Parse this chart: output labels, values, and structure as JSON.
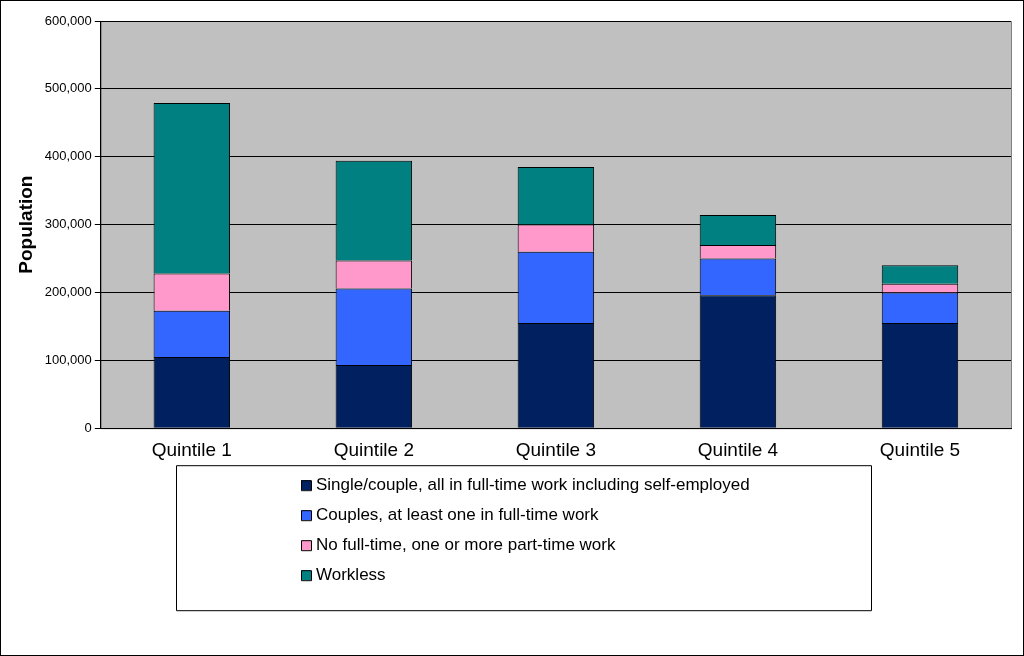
{
  "chart_data": {
    "type": "bar",
    "stacked": true,
    "ylabel": "Population",
    "categories": [
      "Quintile 1",
      "Quintile 2",
      "Quintile 3",
      "Quintile 4",
      "Quintile 5"
    ],
    "series": [
      {
        "name": "Single/couple, all in full-time work including self-employed",
        "color": "#002060",
        "values": [
          105000,
          93000,
          155000,
          196000,
          155000
        ]
      },
      {
        "name": "Couples, at least one in full-time work",
        "color": "#3366ff",
        "values": [
          68000,
          113000,
          105000,
          54000,
          45000
        ]
      },
      {
        "name": "No full-time, one or more part-time work",
        "color": "#ff99cc",
        "values": [
          55000,
          41000,
          40000,
          20000,
          13000
        ]
      },
      {
        "name": "Workless",
        "color": "#008080",
        "values": [
          251000,
          147000,
          85000,
          44000,
          27000
        ]
      }
    ],
    "ylim": [
      0,
      600000
    ],
    "yticks": [
      0,
      {
        "value": 100000,
        "label": "100,000"
      },
      {
        "value": 200000,
        "label": "200,000"
      },
      {
        "value": 300000,
        "label": "300,000"
      },
      {
        "value": 400000,
        "label": "400,000"
      },
      {
        "value": 500000,
        "label": "500,000"
      },
      {
        "value": 600000,
        "label": "600,000"
      }
    ],
    "grid": "y",
    "legend": "bottom"
  }
}
